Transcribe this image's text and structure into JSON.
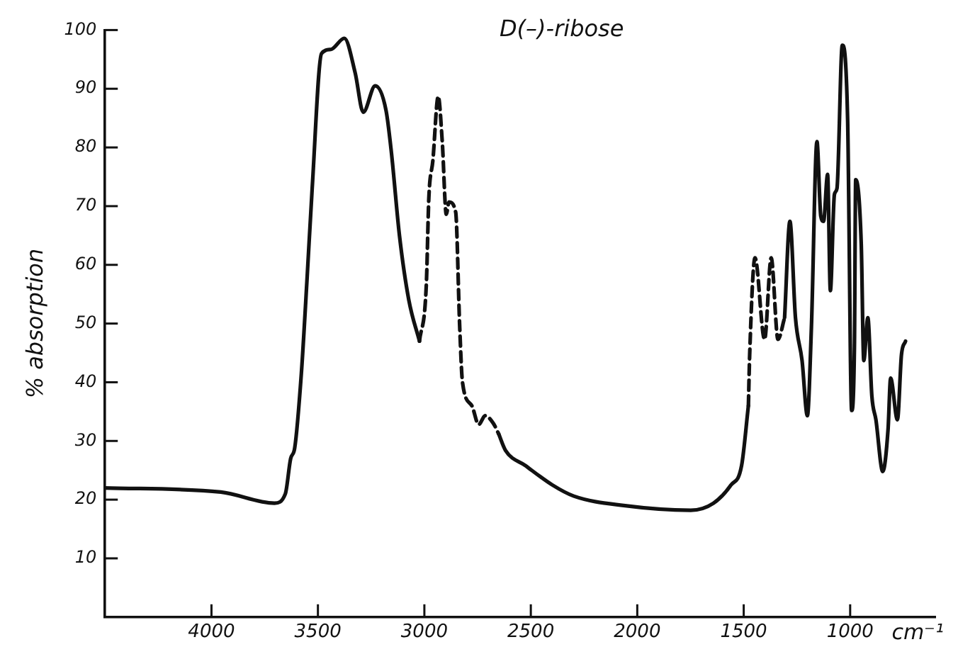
{
  "chart_data": {
    "type": "line",
    "title": "D(–)-ribose",
    "xlabel": "cm⁻¹",
    "ylabel": "% absorption",
    "xlim": [
      4500,
      600
    ],
    "xticks": [
      4000,
      3500,
      3000,
      2500,
      2000,
      1500,
      1000
    ],
    "ylim": [
      0,
      100
    ],
    "yticks": [
      10,
      20,
      30,
      40,
      50,
      60,
      70,
      80,
      90,
      100
    ],
    "legend": false,
    "marker": "none",
    "series": [
      {
        "color": "#111111",
        "line_style": "solid",
        "x": [
          4500,
          3956,
          3704,
          3653,
          3628,
          3609,
          3578,
          3552,
          3527,
          3483,
          3439,
          3376,
          3325,
          3287,
          3231,
          3180,
          3155,
          3117,
          3073,
          3023
        ],
        "values": [
          22.0,
          21.3,
          19.4,
          21,
          27,
          28.8,
          41.4,
          57,
          73,
          96,
          96.7,
          98.6,
          92.7,
          86,
          90.5,
          86.3,
          79.2,
          65,
          54,
          47
        ]
      },
      {
        "color": "#111111",
        "line_style": "dashed",
        "x": [
          3023,
          2991,
          2979,
          2960,
          2935,
          2916,
          2897,
          2884,
          2853,
          2834,
          2821,
          2777,
          2745,
          2714,
          2676,
          2651
        ],
        "values": [
          47,
          56.5,
          71.4,
          77.8,
          88.7,
          81,
          68.6,
          70.7,
          69,
          49.4,
          40,
          36,
          32.8,
          34.3,
          33,
          31.2
        ]
      },
      {
        "color": "#111111",
        "line_style": "solid",
        "x": [
          2651,
          2619,
          2525,
          2399,
          2298,
          2064,
          1749,
          1642,
          1560,
          1510,
          1478
        ],
        "values": [
          31.2,
          28.4,
          25.8,
          22.5,
          20.6,
          19,
          18.2,
          19.4,
          22.5,
          25.8,
          36
        ]
      },
      {
        "color": "#111111",
        "line_style": "dashed",
        "x": [
          1478,
          1472,
          1447,
          1402,
          1371,
          1339,
          1308
        ],
        "values": [
          36,
          44.7,
          61.2,
          47.3,
          61.2,
          47.3,
          51
        ]
      },
      {
        "color": "#111111",
        "line_style": "solid",
        "x": [
          1308,
          1283,
          1257,
          1226,
          1201,
          1182,
          1156,
          1138,
          1125,
          1106,
          1093,
          1074,
          1062,
          1037,
          1012,
          993,
          980,
          974,
          948,
          936,
          917,
          898,
          879,
          847,
          822,
          810,
          778,
          759,
          740
        ],
        "values": [
          51,
          67.4,
          51,
          43.7,
          34.3,
          49.4,
          81,
          68.3,
          67.4,
          75.4,
          55.6,
          72,
          73,
          97.4,
          84.9,
          35.2,
          46,
          74.5,
          63.6,
          43.7,
          51,
          37.6,
          33.6,
          24.8,
          32,
          40.7,
          33.6,
          44.7,
          47
        ]
      }
    ]
  }
}
